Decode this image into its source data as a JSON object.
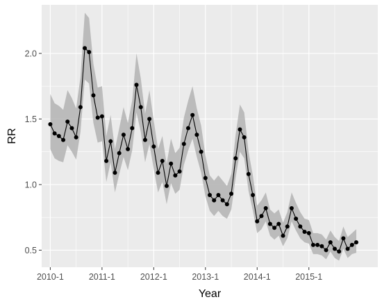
{
  "chart_data": {
    "type": "line",
    "xlabel": "Year",
    "ylabel": "RR",
    "x_ticks": [
      "2010-1",
      "2011-1",
      "2012-1",
      "2013-1",
      "2014-1",
      "2015-1"
    ],
    "y_ticks": [
      "0.5",
      "1.0",
      "1.5",
      "2.0"
    ],
    "xlim": [
      "2009-11",
      "2016-5"
    ],
    "ylim": [
      0.37,
      2.37
    ],
    "grid": true,
    "legend": "none",
    "colors": {
      "panel": "#ebebeb",
      "grid": "#ffffff",
      "line": "#000000",
      "ribbon": "#b3b3b3"
    },
    "series": [
      {
        "x": [
          "2010-01",
          "2010-02",
          "2010-03",
          "2010-04",
          "2010-05",
          "2010-06",
          "2010-07",
          "2010-08",
          "2010-09",
          "2010-10",
          "2010-11",
          "2010-12",
          "2011-01",
          "2011-02",
          "2011-03",
          "2011-04",
          "2011-05",
          "2011-06",
          "2011-07",
          "2011-08",
          "2011-09",
          "2011-10",
          "2011-11",
          "2011-12",
          "2012-01",
          "2012-02",
          "2012-03",
          "2012-04",
          "2012-05",
          "2012-06",
          "2012-07",
          "2012-08",
          "2012-09",
          "2012-10",
          "2012-11",
          "2012-12",
          "2013-01",
          "2013-02",
          "2013-03",
          "2013-04",
          "2013-05",
          "2013-06",
          "2013-07",
          "2013-08",
          "2013-09",
          "2013-10",
          "2013-11",
          "2013-12",
          "2014-01",
          "2014-02",
          "2014-03",
          "2014-04",
          "2014-05",
          "2014-06",
          "2014-07",
          "2014-08",
          "2014-09",
          "2014-10",
          "2014-11",
          "2014-12",
          "2015-01",
          "2015-02",
          "2015-03",
          "2015-04",
          "2015-05",
          "2015-06",
          "2015-07",
          "2015-08",
          "2015-09",
          "2015-10",
          "2015-11",
          "2015-12"
        ],
        "y": [
          1.46,
          1.39,
          1.37,
          1.34,
          1.48,
          1.43,
          1.36,
          1.59,
          2.04,
          2.01,
          1.68,
          1.51,
          1.52,
          1.18,
          1.33,
          1.09,
          1.24,
          1.38,
          1.27,
          1.43,
          1.76,
          1.59,
          1.34,
          1.5,
          1.29,
          1.09,
          1.18,
          0.99,
          1.16,
          1.07,
          1.1,
          1.31,
          1.43,
          1.53,
          1.38,
          1.25,
          1.05,
          0.92,
          0.88,
          0.92,
          0.88,
          0.85,
          0.93,
          1.2,
          1.42,
          1.36,
          1.08,
          0.92,
          0.72,
          0.76,
          0.82,
          0.7,
          0.67,
          0.7,
          0.61,
          0.68,
          0.82,
          0.74,
          0.68,
          0.64,
          0.63,
          0.54,
          0.54,
          0.53,
          0.5,
          0.56,
          0.51,
          0.49,
          0.59,
          0.51,
          0.54,
          0.56
        ],
        "lower": [
          1.27,
          1.2,
          1.18,
          1.17,
          1.3,
          1.25,
          1.19,
          1.4,
          1.8,
          1.77,
          1.47,
          1.32,
          1.33,
          1.02,
          1.17,
          0.94,
          1.08,
          1.21,
          1.11,
          1.26,
          1.55,
          1.4,
          1.17,
          1.31,
          1.12,
          0.94,
          1.02,
          0.85,
          1.01,
          0.93,
          0.96,
          1.15,
          1.26,
          1.35,
          1.21,
          1.09,
          0.91,
          0.8,
          0.76,
          0.8,
          0.76,
          0.74,
          0.81,
          1.05,
          1.25,
          1.2,
          0.95,
          0.8,
          0.63,
          0.66,
          0.72,
          0.61,
          0.58,
          0.61,
          0.53,
          0.59,
          0.72,
          0.65,
          0.59,
          0.56,
          0.55,
          0.47,
          0.47,
          0.46,
          0.43,
          0.49,
          0.44,
          0.42,
          0.51,
          0.44,
          0.47,
          0.48
        ],
        "upper": [
          1.69,
          1.62,
          1.6,
          1.57,
          1.72,
          1.66,
          1.58,
          1.82,
          2.31,
          2.27,
          1.92,
          1.74,
          1.75,
          1.37,
          1.53,
          1.27,
          1.43,
          1.59,
          1.47,
          1.64,
          2.0,
          1.81,
          1.54,
          1.72,
          1.49,
          1.27,
          1.37,
          1.16,
          1.35,
          1.24,
          1.28,
          1.51,
          1.64,
          1.75,
          1.58,
          1.45,
          1.22,
          1.07,
          1.03,
          1.07,
          1.03,
          0.99,
          1.08,
          1.38,
          1.61,
          1.55,
          1.25,
          1.07,
          0.84,
          0.88,
          0.94,
          0.81,
          0.78,
          0.81,
          0.71,
          0.79,
          0.94,
          0.86,
          0.79,
          0.74,
          0.73,
          0.63,
          0.63,
          0.62,
          0.58,
          0.65,
          0.6,
          0.57,
          0.68,
          0.6,
          0.63,
          0.66
        ]
      }
    ]
  }
}
